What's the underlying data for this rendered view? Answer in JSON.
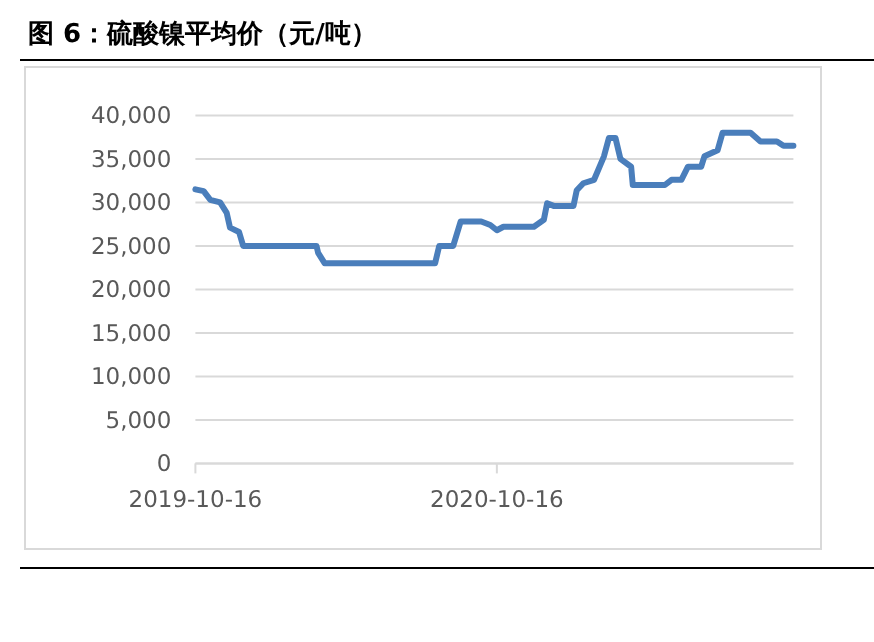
{
  "chart_data": {
    "type": "line",
    "title": "图 6：硫酸镍平均价（元/吨）",
    "x": [
      "2019-10-16",
      "2019-10-26",
      "2019-11-03",
      "2019-11-15",
      "2019-11-23",
      "2019-11-27",
      "2019-12-08",
      "2019-12-13",
      "2020-03-11",
      "2020-03-13",
      "2020-03-21",
      "2020-08-02",
      "2020-08-07",
      "2020-08-24",
      "2020-09-02",
      "2020-09-27",
      "2020-10-08",
      "2020-10-16",
      "2020-10-24",
      "2020-11-30",
      "2020-12-12",
      "2020-12-16",
      "2020-12-24",
      "2021-01-17",
      "2021-01-21",
      "2021-01-29",
      "2021-02-11",
      "2021-02-23",
      "2021-03-01",
      "2021-03-09",
      "2021-03-15",
      "2021-03-28",
      "2021-03-30",
      "2021-05-08",
      "2021-05-16",
      "2021-05-28",
      "2021-06-05",
      "2021-06-21",
      "2021-06-25",
      "2021-07-11",
      "2021-07-17",
      "2021-08-20",
      "2021-09-01",
      "2021-09-21",
      "2021-09-29",
      "2021-10-11"
    ],
    "series": [
      {
        "color": "#4a7ebb",
        "values": [
          31500,
          31300,
          30300,
          30000,
          28800,
          27100,
          26600,
          25000,
          25000,
          24200,
          23000,
          23000,
          25000,
          25000,
          27800,
          27800,
          27400,
          26800,
          27200,
          27200,
          28000,
          29900,
          29600,
          29600,
          31400,
          32200,
          32600,
          35300,
          37400,
          37400,
          35000,
          34100,
          32000,
          32000,
          32600,
          32600,
          34100,
          34100,
          35300,
          36000,
          38000,
          38000,
          37000,
          37000,
          36500,
          36500
        ]
      }
    ],
    "xlim": [
      "2019-10-16",
      "2021-10-11"
    ],
    "xticks": [
      "2019-10-16",
      "2020-10-16"
    ],
    "ylim": [
      0,
      40000
    ],
    "yticks": [
      0,
      {
        "value": 5000,
        "label": "5,000"
      },
      {
        "value": 10000,
        "label": "10,000"
      },
      {
        "value": 15000,
        "label": "15,000"
      },
      {
        "value": 20000,
        "label": "20,000"
      },
      {
        "value": 25000,
        "label": "25,000"
      },
      {
        "value": 30000,
        "label": "30,000"
      },
      {
        "value": 35000,
        "label": "35,000"
      },
      {
        "value": 40000,
        "label": "40,000"
      }
    ],
    "grid": "y",
    "marker": "none",
    "line_style": "solid"
  }
}
